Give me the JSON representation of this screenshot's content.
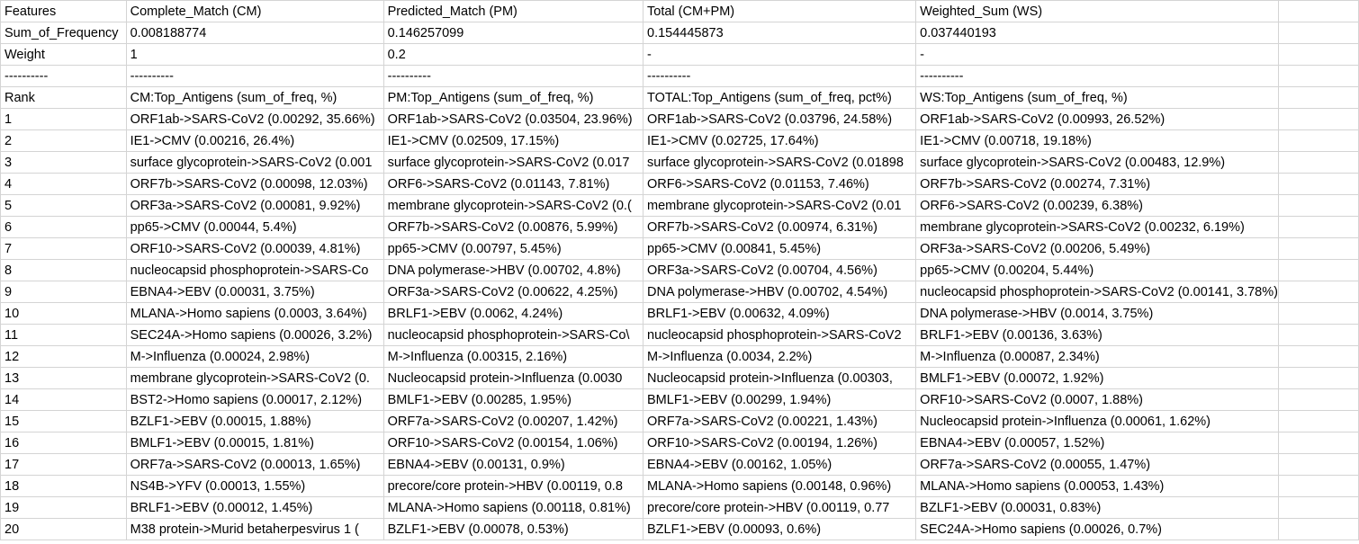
{
  "sheet": {
    "rows": [
      [
        "Features",
        "Complete_Match (CM)",
        "Predicted_Match (PM)",
        "Total (CM+PM)",
        "Weighted_Sum (WS)",
        ""
      ],
      [
        "Sum_of_Frequency",
        "0.008188774",
        "0.146257099",
        "0.154445873",
        "0.037440193",
        ""
      ],
      [
        "Weight",
        "1",
        "0.2",
        "-",
        "-",
        ""
      ],
      [
        "----------",
        "----------",
        "----------",
        "----------",
        "----------",
        ""
      ],
      [
        "Rank",
        "CM:Top_Antigens (sum_of_freq, %)",
        "PM:Top_Antigens (sum_of_freq, %)",
        "TOTAL:Top_Antigens (sum_of_freq, pct%)",
        "WS:Top_Antigens (sum_of_freq, %)",
        ""
      ],
      [
        "1",
        "ORF1ab->SARS-CoV2 (0.00292, 35.66%)",
        "ORF1ab->SARS-CoV2 (0.03504, 23.96%)",
        "ORF1ab->SARS-CoV2 (0.03796, 24.58%)",
        "ORF1ab->SARS-CoV2 (0.00993, 26.52%)",
        ""
      ],
      [
        "2",
        "IE1->CMV (0.00216, 26.4%)",
        "IE1->CMV (0.02509, 17.15%)",
        "IE1->CMV (0.02725, 17.64%)",
        "IE1->CMV (0.00718, 19.18%)",
        ""
      ],
      [
        "3",
        "surface glycoprotein->SARS-CoV2 (0.001",
        "surface glycoprotein->SARS-CoV2 (0.017",
        "surface glycoprotein->SARS-CoV2 (0.01898",
        "surface glycoprotein->SARS-CoV2 (0.00483, 12.9%)",
        ""
      ],
      [
        "4",
        "ORF7b->SARS-CoV2 (0.00098, 12.03%)",
        "ORF6->SARS-CoV2 (0.01143, 7.81%)",
        "ORF6->SARS-CoV2 (0.01153, 7.46%)",
        "ORF7b->SARS-CoV2 (0.00274, 7.31%)",
        ""
      ],
      [
        "5",
        "ORF3a->SARS-CoV2 (0.00081, 9.92%)",
        "membrane glycoprotein->SARS-CoV2 (0.(",
        "membrane glycoprotein->SARS-CoV2 (0.01",
        "ORF6->SARS-CoV2 (0.00239, 6.38%)",
        ""
      ],
      [
        "6",
        "pp65->CMV (0.00044, 5.4%)",
        "ORF7b->SARS-CoV2 (0.00876, 5.99%)",
        "ORF7b->SARS-CoV2 (0.00974, 6.31%)",
        "membrane glycoprotein->SARS-CoV2 (0.00232, 6.19%)",
        ""
      ],
      [
        "7",
        "ORF10->SARS-CoV2 (0.00039, 4.81%)",
        "pp65->CMV (0.00797, 5.45%)",
        "pp65->CMV (0.00841, 5.45%)",
        "ORF3a->SARS-CoV2 (0.00206, 5.49%)",
        ""
      ],
      [
        "8",
        "nucleocapsid phosphoprotein->SARS-Co",
        "DNA polymerase->HBV (0.00702, 4.8%)",
        "ORF3a->SARS-CoV2 (0.00704, 4.56%)",
        "pp65->CMV (0.00204, 5.44%)",
        ""
      ],
      [
        "9",
        "EBNA4->EBV (0.00031, 3.75%)",
        "ORF3a->SARS-CoV2 (0.00622, 4.25%)",
        "DNA polymerase->HBV (0.00702, 4.54%)",
        "nucleocapsid phosphoprotein->SARS-CoV2 (0.00141, 3.78%)",
        ""
      ],
      [
        "10",
        "MLANA->Homo sapiens (0.0003, 3.64%)",
        "BRLF1->EBV (0.0062, 4.24%)",
        "BRLF1->EBV (0.00632, 4.09%)",
        "DNA polymerase->HBV (0.0014, 3.75%)",
        ""
      ],
      [
        "11",
        "SEC24A->Homo sapiens (0.00026, 3.2%)",
        "nucleocapsid phosphoprotein->SARS-Co\\",
        "nucleocapsid phosphoprotein->SARS-CoV2",
        "BRLF1->EBV (0.00136, 3.63%)",
        ""
      ],
      [
        "12",
        "M->Influenza (0.00024, 2.98%)",
        "M->Influenza (0.00315, 2.16%)",
        "M->Influenza (0.0034, 2.2%)",
        "M->Influenza (0.00087, 2.34%)",
        ""
      ],
      [
        "13",
        "membrane glycoprotein->SARS-CoV2 (0.",
        "Nucleocapsid protein->Influenza (0.0030",
        "Nucleocapsid protein->Influenza (0.00303,",
        "BMLF1->EBV (0.00072, 1.92%)",
        ""
      ],
      [
        "14",
        "BST2->Homo sapiens (0.00017, 2.12%)",
        "BMLF1->EBV (0.00285, 1.95%)",
        "BMLF1->EBV (0.00299, 1.94%)",
        "ORF10->SARS-CoV2 (0.0007, 1.88%)",
        ""
      ],
      [
        "15",
        "BZLF1->EBV (0.00015, 1.88%)",
        "ORF7a->SARS-CoV2 (0.00207, 1.42%)",
        "ORF7a->SARS-CoV2 (0.00221, 1.43%)",
        "Nucleocapsid protein->Influenza (0.00061, 1.62%)",
        ""
      ],
      [
        "16",
        "BMLF1->EBV (0.00015, 1.81%)",
        "ORF10->SARS-CoV2 (0.00154, 1.06%)",
        "ORF10->SARS-CoV2 (0.00194, 1.26%)",
        "EBNA4->EBV (0.00057, 1.52%)",
        ""
      ],
      [
        "17",
        "ORF7a->SARS-CoV2 (0.00013, 1.65%)",
        "EBNA4->EBV (0.00131, 0.9%)",
        "EBNA4->EBV (0.00162, 1.05%)",
        "ORF7a->SARS-CoV2 (0.00055, 1.47%)",
        ""
      ],
      [
        "18",
        "NS4B->YFV (0.00013, 1.55%)",
        "precore/core protein->HBV (0.00119, 0.8",
        "MLANA->Homo sapiens (0.00148, 0.96%)",
        "MLANA->Homo sapiens (0.00053, 1.43%)",
        ""
      ],
      [
        "19",
        "BRLF1->EBV (0.00012, 1.45%)",
        "MLANA->Homo sapiens (0.00118, 0.81%)",
        "precore/core protein->HBV (0.00119, 0.77",
        "BZLF1->EBV (0.00031, 0.83%)",
        ""
      ],
      [
        "20",
        "M38 protein->Murid betaherpesvirus 1 (",
        "BZLF1->EBV (0.00078, 0.53%)",
        "BZLF1->EBV (0.00093, 0.6%)",
        "SEC24A->Homo sapiens (0.00026, 0.7%)",
        ""
      ]
    ]
  }
}
